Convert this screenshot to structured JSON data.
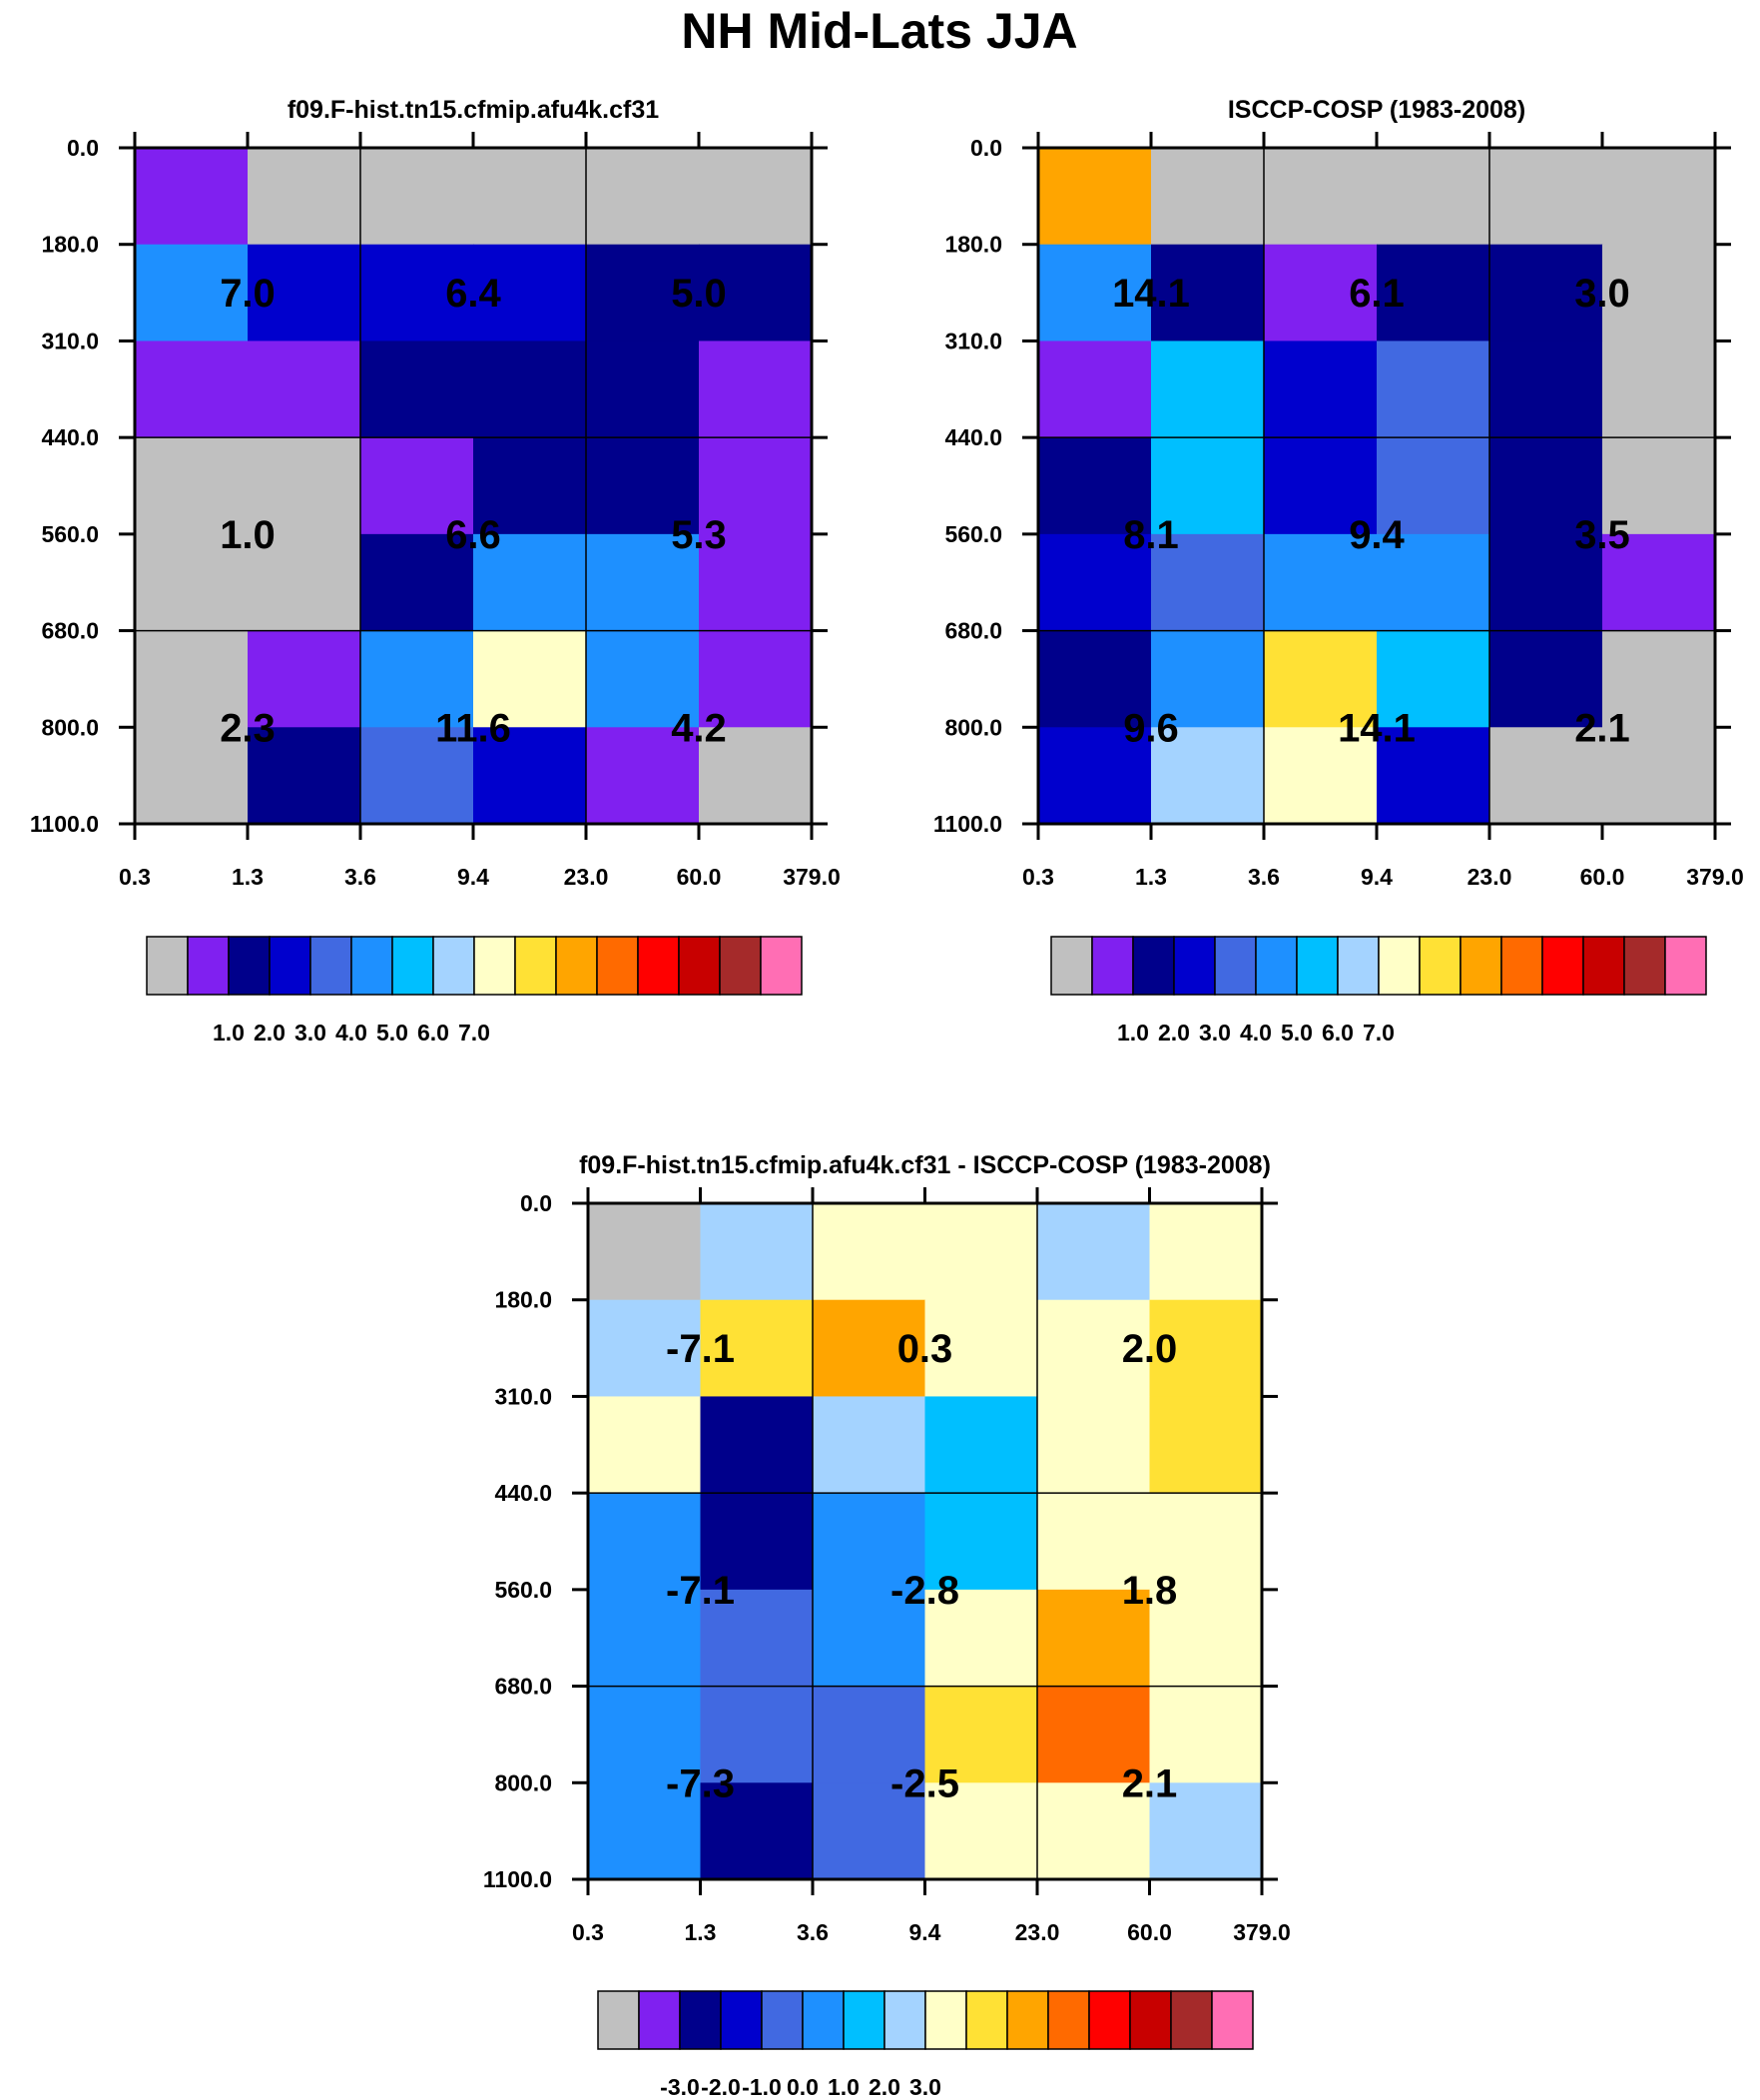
{
  "figure": {
    "title": "NH Mid-Lats JJA"
  },
  "y_ticks": [
    "0.0",
    "180.0",
    "310.0",
    "440.0",
    "560.0",
    "680.0",
    "800.0",
    "1100.0"
  ],
  "x_ticks": [
    "0.3",
    "1.3",
    "3.6",
    "9.4",
    "23.0",
    "60.0",
    "379.0"
  ],
  "chart_data": [
    {
      "type": "heatmap",
      "title": "f09.F-hist.tn15.cfmip.afu4k.cf31",
      "xlabel": "",
      "ylabel": "",
      "cells_color_index": [
        [
          1,
          0,
          0,
          0,
          0,
          0
        ],
        [
          5,
          3,
          3,
          3,
          2,
          2
        ],
        [
          1,
          1,
          2,
          2,
          2,
          1
        ],
        [
          0,
          0,
          1,
          2,
          2,
          1
        ],
        [
          0,
          0,
          2,
          5,
          5,
          1
        ],
        [
          0,
          1,
          5,
          8,
          5,
          1
        ],
        [
          0,
          2,
          4,
          3,
          1,
          0
        ]
      ],
      "block_values": [
        [
          "7.0",
          "6.4",
          "5.0"
        ],
        [
          "1.0",
          "6.6",
          "5.3"
        ],
        [
          "2.3",
          "11.6",
          "4.2"
        ]
      ],
      "colorbar_labels": [
        "1.0",
        "2.0",
        "3.0",
        "4.0",
        "5.0",
        "6.0",
        "7.0"
      ]
    },
    {
      "type": "heatmap",
      "title": "ISCCP-COSP (1983-2008)",
      "xlabel": "",
      "ylabel": "",
      "cells_color_index": [
        [
          10,
          0,
          0,
          0,
          0,
          0
        ],
        [
          5,
          2,
          1,
          2,
          2,
          0
        ],
        [
          1,
          6,
          3,
          4,
          2,
          0
        ],
        [
          2,
          6,
          3,
          4,
          2,
          0
        ],
        [
          3,
          4,
          5,
          5,
          2,
          1
        ],
        [
          2,
          5,
          9,
          6,
          2,
          0
        ],
        [
          3,
          7,
          8,
          3,
          0,
          0
        ]
      ],
      "block_values": [
        [
          "14.1",
          "6.1",
          "3.0"
        ],
        [
          "8.1",
          "9.4",
          "3.5"
        ],
        [
          "9.6",
          "14.1",
          "2.1"
        ]
      ],
      "colorbar_labels": [
        "1.0",
        "2.0",
        "3.0",
        "4.0",
        "5.0",
        "6.0",
        "7.0"
      ]
    },
    {
      "type": "heatmap",
      "title": "f09.F-hist.tn15.cfmip.afu4k.cf31 - ISCCP-COSP (1983-2008)",
      "xlabel": "",
      "ylabel": "",
      "cells_color_index": [
        [
          0,
          7,
          8,
          8,
          7,
          8
        ],
        [
          7,
          9,
          10,
          8,
          8,
          9
        ],
        [
          8,
          2,
          7,
          6,
          8,
          9
        ],
        [
          5,
          2,
          5,
          6,
          8,
          8
        ],
        [
          5,
          4,
          5,
          8,
          10,
          8
        ],
        [
          5,
          4,
          4,
          9,
          11,
          8
        ],
        [
          5,
          2,
          4,
          8,
          8,
          7
        ]
      ],
      "block_values": [
        [
          "-7.1",
          "0.3",
          "2.0"
        ],
        [
          "-7.1",
          "-2.8",
          "1.8"
        ],
        [
          "-7.3",
          "-2.5",
          "2.1"
        ]
      ],
      "colorbar_labels": [
        "-3.0",
        "-2.0",
        "-1.0",
        "0.0",
        "1.0",
        "2.0",
        "3.0"
      ]
    }
  ],
  "palette": [
    "#c0c0c0",
    "#8020f0",
    "#00008b",
    "#0000cd",
    "#4169e1",
    "#1e90ff",
    "#00bfff",
    "#a4d3ff",
    "#ffffc8",
    "#ffe135",
    "#ffa500",
    "#ff6a00",
    "#ff0000",
    "#c80000",
    "#a52a2a",
    "#ff6eb4"
  ]
}
